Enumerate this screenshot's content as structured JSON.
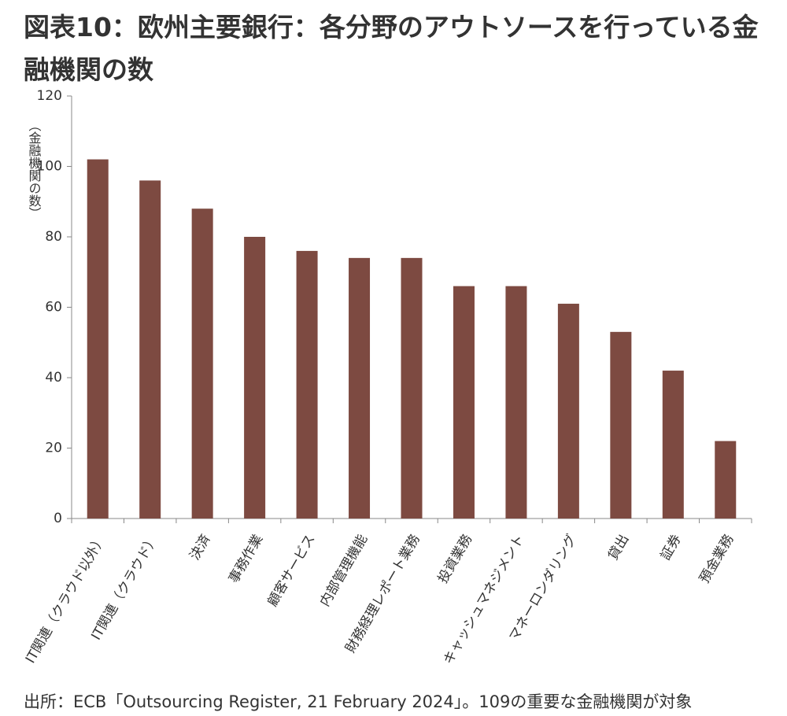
{
  "chart_data": {
    "type": "bar",
    "title": "図表10：欧州主要銀行：各分野のアウトソースを行っている金融機関の数",
    "y_label": "（金融機関の数）",
    "source": "出所：ECB「Outsourcing Register, 21 February 2024」。109の重要な金融機関が対象",
    "categories": [
      "IT関連（クラウド以外）",
      "IT関連（クラウド）",
      "決済",
      "事務作業",
      "顧客サービス",
      "内部管理機能",
      "財務経理レポート業務",
      "投資業務",
      "キャッシュマネジメント",
      "マネーロンダリング",
      "貸出",
      "証券",
      "預金業務"
    ],
    "values": [
      102,
      96,
      88,
      80,
      76,
      74,
      74,
      66,
      66,
      61,
      53,
      42,
      22
    ],
    "color": "#7d4a41",
    "ylim": [
      0,
      120
    ],
    "yticks": [
      0,
      20,
      40,
      60,
      80,
      100,
      120
    ],
    "grid": false
  }
}
